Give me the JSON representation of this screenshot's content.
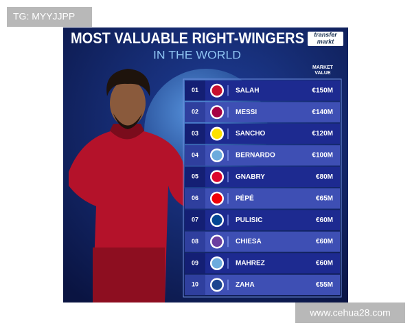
{
  "watermark_top": "TG: MYYJJPP",
  "watermark_bottom": "www.cehua28.com",
  "header": {
    "title": "MOST VALUABLE RIGHT-WINGERS",
    "subtitle": "IN THE WORLD",
    "logo_line1": "transfer",
    "logo_line2": "markt"
  },
  "table": {
    "column_header": "MARKET VALUE",
    "rows": [
      {
        "rank": "01",
        "player": "SALAH",
        "value": "€150M"
      },
      {
        "rank": "02",
        "player": "MESSI",
        "value": "€140M"
      },
      {
        "rank": "03",
        "player": "SANCHO",
        "value": "€120M"
      },
      {
        "rank": "04",
        "player": "BERNARDO",
        "value": "€100M"
      },
      {
        "rank": "05",
        "player": "GNABRY",
        "value": "€80M"
      },
      {
        "rank": "06",
        "player": "PÉPÉ",
        "value": "€65M"
      },
      {
        "rank": "07",
        "player": "PULISIC",
        "value": "€60M"
      },
      {
        "rank": "08",
        "player": "CHIESA",
        "value": "€60M"
      },
      {
        "rank": "09",
        "player": "MAHREZ",
        "value": "€60M"
      },
      {
        "rank": "10",
        "player": "ZAHA",
        "value": "€55M"
      }
    ]
  }
}
